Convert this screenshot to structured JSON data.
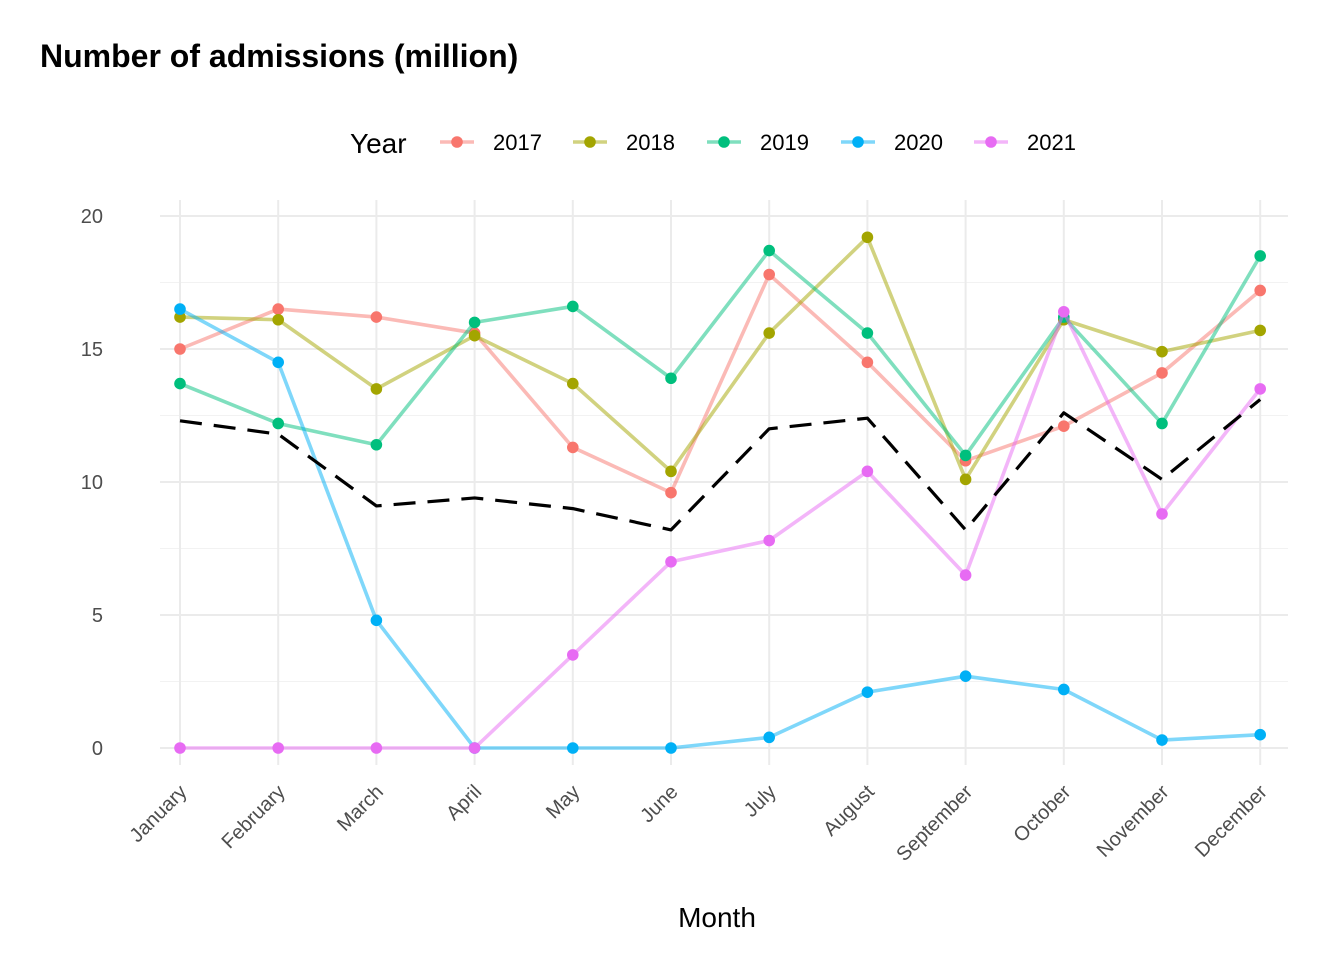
{
  "chart_data": {
    "type": "line",
    "title": "Number of admissions (million)",
    "xlabel": "Month",
    "ylabel": "",
    "legend_title": "Year",
    "legend_position": "top",
    "grid": true,
    "ylim": [
      -1,
      20
    ],
    "yticks": [
      0,
      5,
      10,
      15,
      20
    ],
    "categories": [
      "January",
      "February",
      "March",
      "April",
      "May",
      "June",
      "July",
      "August",
      "September",
      "October",
      "November",
      "December"
    ],
    "series": [
      {
        "name": "2017",
        "color": "#F8766D",
        "values": [
          15.0,
          16.5,
          16.2,
          15.6,
          11.3,
          9.6,
          17.8,
          14.5,
          10.8,
          12.1,
          14.1,
          17.2
        ]
      },
      {
        "name": "2018",
        "color": "#A3A500",
        "values": [
          16.2,
          16.1,
          13.5,
          15.5,
          13.7,
          10.4,
          15.6,
          19.2,
          10.1,
          16.1,
          14.9,
          15.7
        ]
      },
      {
        "name": "2019",
        "color": "#00BF7D",
        "values": [
          13.7,
          12.2,
          11.4,
          16.0,
          16.6,
          13.9,
          18.7,
          15.6,
          11.0,
          16.2,
          12.2,
          18.5
        ]
      },
      {
        "name": "2020",
        "color": "#00B0F6",
        "values": [
          16.5,
          14.5,
          4.8,
          0.0,
          0.0,
          0.0,
          0.4,
          2.1,
          2.7,
          2.2,
          0.3,
          0.5
        ]
      },
      {
        "name": "2021",
        "color": "#E76BF3",
        "values": [
          0.0,
          0.0,
          0.0,
          0.0,
          3.5,
          7.0,
          7.8,
          10.4,
          6.5,
          16.4,
          8.8,
          13.5
        ]
      }
    ],
    "reference_line": {
      "style": "dashed",
      "color": "#000000",
      "values": [
        12.3,
        11.8,
        9.1,
        9.4,
        9.0,
        8.2,
        12.0,
        12.4,
        8.2,
        12.6,
        10.1,
        13.1
      ]
    }
  }
}
